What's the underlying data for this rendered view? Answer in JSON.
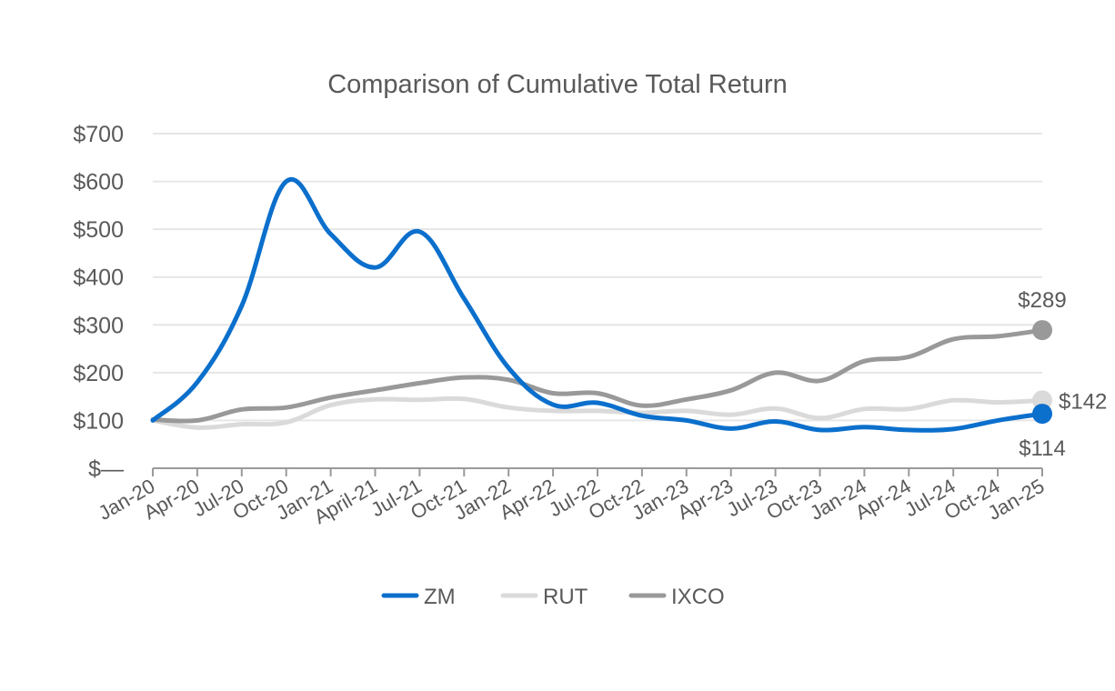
{
  "chart_data": {
    "type": "line",
    "title": "Comparison of Cumulative Total Return",
    "xlabel": "",
    "ylabel": "",
    "ylim": [
      0,
      700
    ],
    "y_ticks": [
      0,
      100,
      200,
      300,
      400,
      500,
      600,
      700
    ],
    "y_tick_labels": [
      "$—",
      "$100",
      "$200",
      "$300",
      "$400",
      "$500",
      "$600",
      "$700"
    ],
    "grid": true,
    "legend_position": "bottom",
    "categories": [
      "Jan-20",
      "Apr-20",
      "Jul-20",
      "Oct-20",
      "Jan-21",
      "April-21",
      "Jul-21",
      "Oct-21",
      "Jan-22",
      "Apr-22",
      "Jul-22",
      "Oct-22",
      "Jan-23",
      "Apr-23",
      "Jul-23",
      "Oct-23",
      "Jan-24",
      "Apr-24",
      "Jul-24",
      "Oct-24",
      "Jan-25"
    ],
    "series": [
      {
        "name": "ZM",
        "color": "#0b6fcc",
        "values": [
          100,
          180,
          340,
          600,
          490,
          420,
          495,
          355,
          210,
          133,
          137,
          110,
          100,
          83,
          98,
          80,
          86,
          80,
          82,
          100,
          114
        ],
        "end_label": "$114"
      },
      {
        "name": "RUT",
        "color": "#dadada",
        "values": [
          100,
          85,
          92,
          96,
          132,
          144,
          143,
          145,
          127,
          120,
          120,
          116,
          120,
          112,
          125,
          105,
          124,
          124,
          142,
          138,
          142
        ],
        "end_label": "$142"
      },
      {
        "name": "IXCO",
        "color": "#999999",
        "values": [
          102,
          100,
          123,
          127,
          148,
          163,
          178,
          190,
          185,
          157,
          157,
          131,
          144,
          163,
          200,
          183,
          224,
          233,
          270,
          276,
          289
        ],
        "end_label": "$289"
      }
    ]
  }
}
